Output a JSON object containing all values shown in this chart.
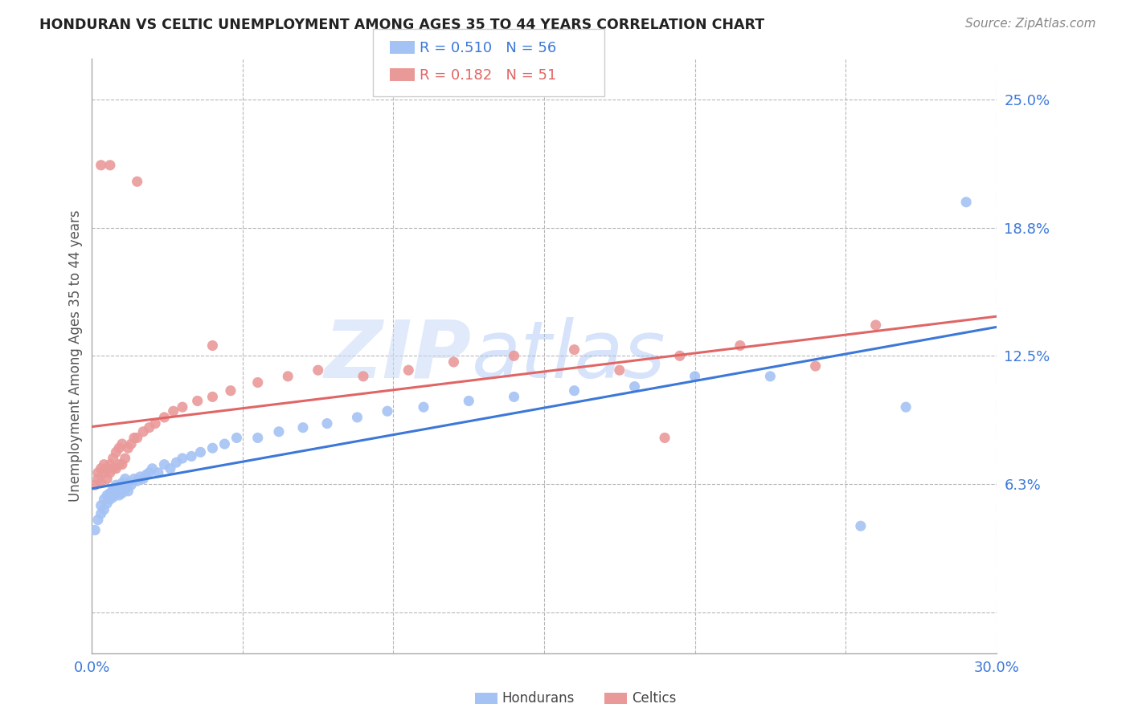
{
  "title": "HONDURAN VS CELTIC UNEMPLOYMENT AMONG AGES 35 TO 44 YEARS CORRELATION CHART",
  "source": "Source: ZipAtlas.com",
  "ylabel": "Unemployment Among Ages 35 to 44 years",
  "xlim": [
    0.0,
    0.3
  ],
  "ylim": [
    -0.02,
    0.27
  ],
  "xticks": [
    0.0,
    0.05,
    0.1,
    0.15,
    0.2,
    0.25,
    0.3
  ],
  "xticklabels": [
    "0.0%",
    "",
    "",
    "",
    "",
    "",
    "30.0%"
  ],
  "ytick_positions": [
    0.0,
    0.0625,
    0.125,
    0.1875,
    0.25
  ],
  "ytick_labels": [
    "",
    "6.3%",
    "12.5%",
    "18.8%",
    "25.0%"
  ],
  "honduran_color": "#a4c2f4",
  "celtic_color": "#ea9999",
  "honduran_line_color": "#3c78d8",
  "celtic_line_color": "#e06666",
  "background_color": "#ffffff",
  "grid_color": "#b7b7b7",
  "legend_R_honduran": "0.510",
  "legend_N_honduran": "56",
  "legend_R_celtic": "0.182",
  "legend_N_celtic": "51",
  "honduran_x": [
    0.001,
    0.002,
    0.003,
    0.003,
    0.004,
    0.004,
    0.005,
    0.005,
    0.006,
    0.006,
    0.007,
    0.007,
    0.008,
    0.008,
    0.009,
    0.009,
    0.01,
    0.01,
    0.011,
    0.011,
    0.012,
    0.012,
    0.013,
    0.014,
    0.015,
    0.016,
    0.017,
    0.018,
    0.019,
    0.02,
    0.022,
    0.024,
    0.026,
    0.028,
    0.03,
    0.033,
    0.036,
    0.04,
    0.044,
    0.048,
    0.055,
    0.062,
    0.07,
    0.078,
    0.088,
    0.098,
    0.11,
    0.125,
    0.14,
    0.16,
    0.18,
    0.2,
    0.225,
    0.255,
    0.27,
    0.29
  ],
  "honduran_y": [
    0.04,
    0.045,
    0.048,
    0.052,
    0.05,
    0.055,
    0.053,
    0.057,
    0.055,
    0.058,
    0.056,
    0.06,
    0.058,
    0.062,
    0.057,
    0.061,
    0.058,
    0.063,
    0.06,
    0.065,
    0.059,
    0.063,
    0.062,
    0.065,
    0.064,
    0.066,
    0.065,
    0.067,
    0.068,
    0.07,
    0.068,
    0.072,
    0.07,
    0.073,
    0.075,
    0.076,
    0.078,
    0.08,
    0.082,
    0.085,
    0.085,
    0.088,
    0.09,
    0.092,
    0.095,
    0.098,
    0.1,
    0.103,
    0.105,
    0.108,
    0.11,
    0.115,
    0.115,
    0.042,
    0.1,
    0.2
  ],
  "celtic_x": [
    0.001,
    0.002,
    0.002,
    0.003,
    0.003,
    0.004,
    0.004,
    0.005,
    0.005,
    0.006,
    0.006,
    0.007,
    0.007,
    0.008,
    0.008,
    0.009,
    0.009,
    0.01,
    0.01,
    0.011,
    0.012,
    0.013,
    0.014,
    0.015,
    0.017,
    0.019,
    0.021,
    0.024,
    0.027,
    0.03,
    0.035,
    0.04,
    0.046,
    0.055,
    0.065,
    0.075,
    0.09,
    0.105,
    0.12,
    0.14,
    0.16,
    0.175,
    0.195,
    0.215,
    0.24,
    0.26,
    0.003,
    0.006,
    0.015,
    0.04,
    0.19
  ],
  "celtic_y": [
    0.062,
    0.065,
    0.068,
    0.063,
    0.07,
    0.068,
    0.072,
    0.065,
    0.07,
    0.068,
    0.072,
    0.07,
    0.075,
    0.07,
    0.078,
    0.072,
    0.08,
    0.072,
    0.082,
    0.075,
    0.08,
    0.082,
    0.085,
    0.085,
    0.088,
    0.09,
    0.092,
    0.095,
    0.098,
    0.1,
    0.103,
    0.105,
    0.108,
    0.112,
    0.115,
    0.118,
    0.115,
    0.118,
    0.122,
    0.125,
    0.128,
    0.118,
    0.125,
    0.13,
    0.12,
    0.14,
    0.218,
    0.218,
    0.21,
    0.13,
    0.085
  ]
}
